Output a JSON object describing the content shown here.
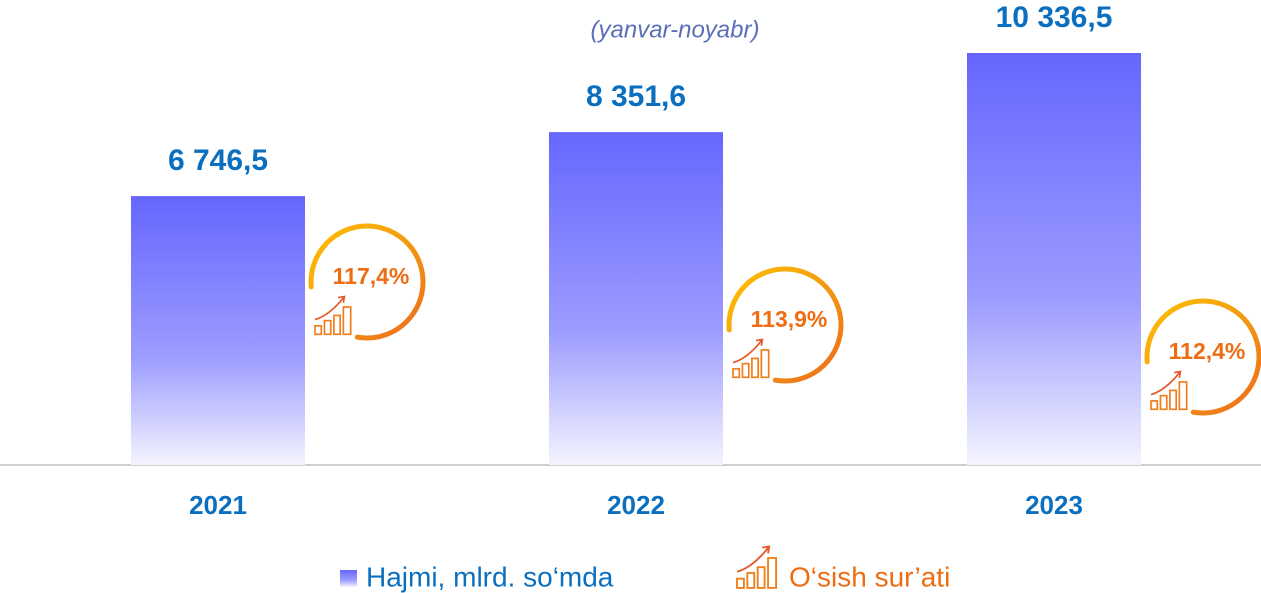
{
  "chart_data": {
    "type": "bar",
    "subtitle": "(yanvar-noyabr)",
    "categories": [
      "2021",
      "2022",
      "2023"
    ],
    "series": [
      {
        "name": "Hajmi, mlrd. so‘mda",
        "color": "#6666ff",
        "values": [
          6746.5,
          8351.6,
          10336.5
        ],
        "value_labels": [
          "6 746,5",
          "8 351,6",
          "10 336,5"
        ]
      },
      {
        "name": "O‘sish sur’ati",
        "color": "#f07d1a",
        "values": [
          117.4,
          113.9,
          112.4
        ],
        "value_labels": [
          "117,4%",
          "113,9%",
          "112,4%"
        ]
      }
    ]
  }
}
